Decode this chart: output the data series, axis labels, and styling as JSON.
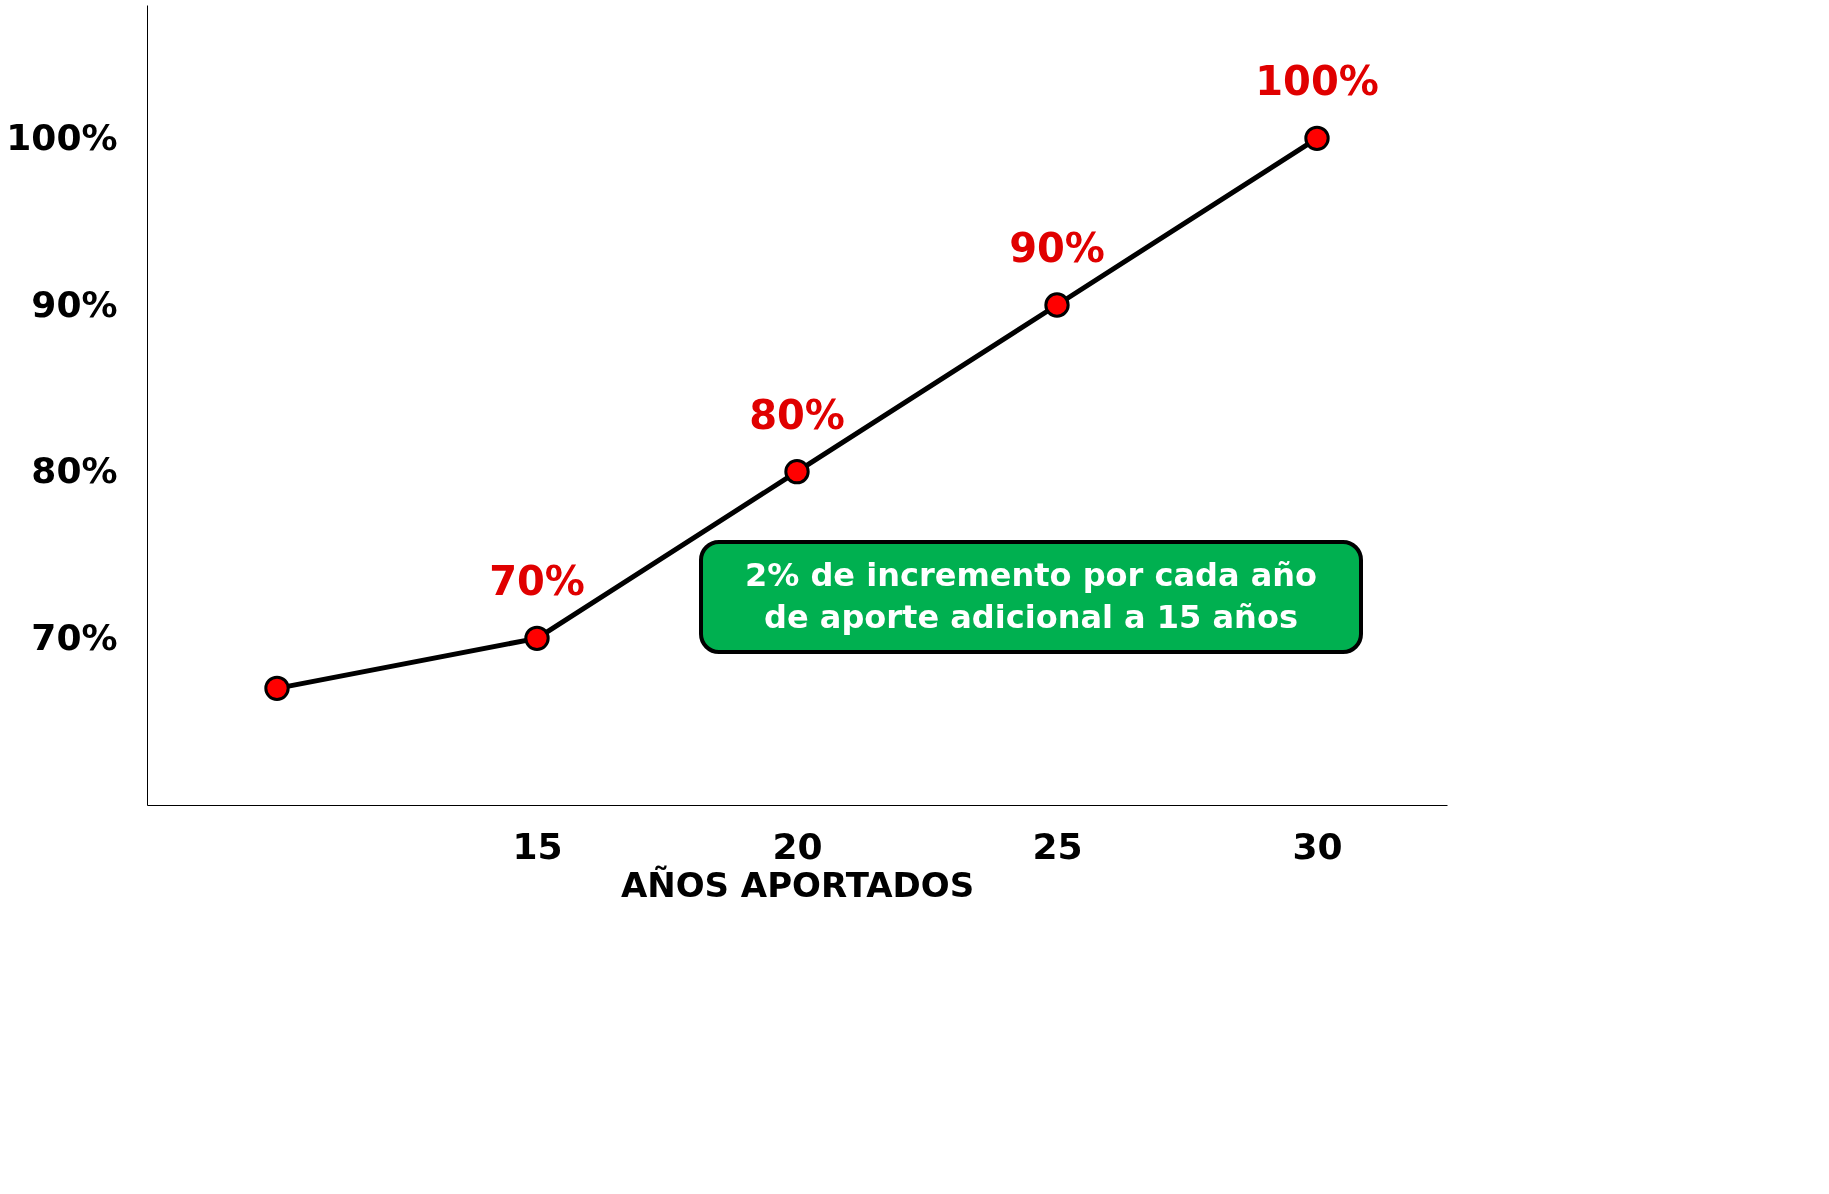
{
  "chart_data": {
    "type": "line",
    "xlabel": "AÑOS APORTADOS",
    "categories": [
      null,
      "15",
      "20",
      "25",
      "30"
    ],
    "series": [
      {
        "color": "#000000",
        "values": [
          67,
          70,
          80,
          90,
          100
        ]
      }
    ],
    "colors": [
      "#ff0000",
      "#ff0000",
      "#ff0000",
      "#ff0000",
      "#ff0000"
    ],
    "value_labels": [
      null,
      "70%",
      "80%",
      "90%",
      "100%"
    ],
    "ylim": [
      60,
      108
    ],
    "yticks": [
      {
        "value": 70,
        "label": "70%"
      },
      {
        "value": 80,
        "label": "80%"
      },
      {
        "value": 90,
        "label": "90%"
      },
      {
        "value": 100,
        "label": "100%"
      }
    ],
    "annotations": [
      "2%  de incremento por cada año de aporte adicional a 15 años"
    ],
    "marker": "circle",
    "line_style": "solid",
    "grid": false
  }
}
